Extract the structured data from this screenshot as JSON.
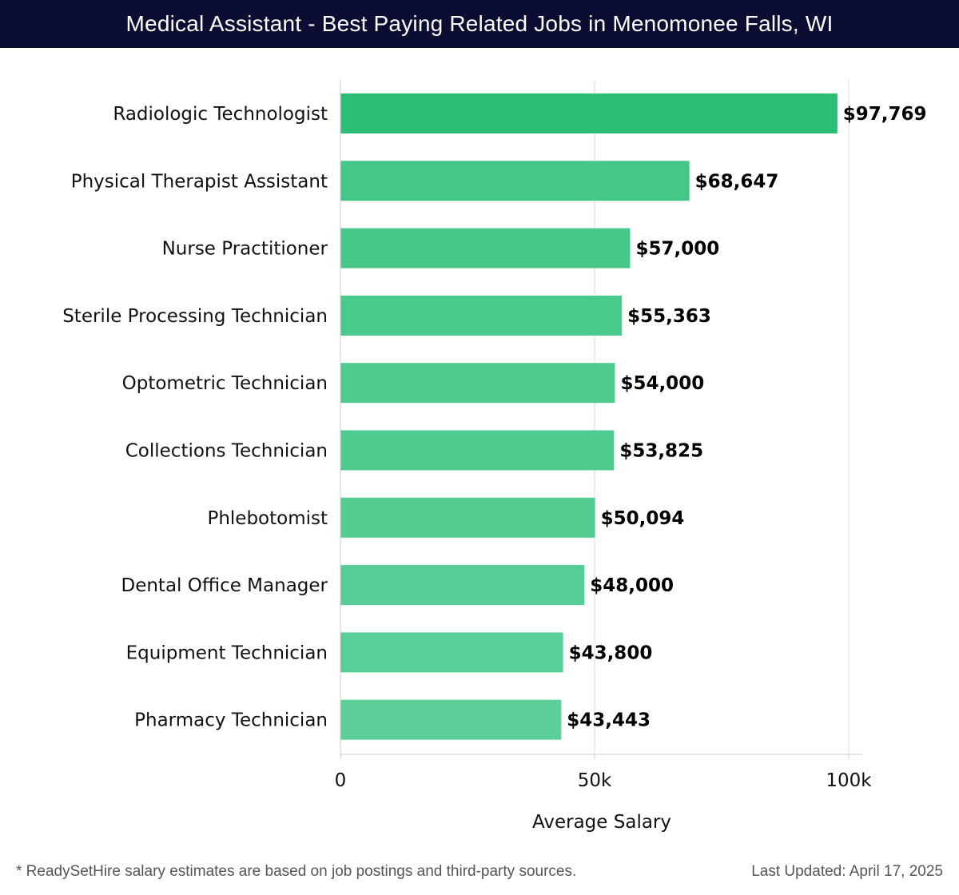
{
  "header": {
    "title": "Medical Assistant - Best Paying Related Jobs in Menomonee Falls, WI"
  },
  "chart_data": {
    "type": "bar",
    "orientation": "horizontal",
    "title": "Medical Assistant - Best Paying Related Jobs in Menomonee Falls, WI",
    "xlabel": "Average Salary",
    "ylabel": "",
    "xlim": [
      0,
      100000
    ],
    "xticks": [
      0,
      50000,
      100000
    ],
    "xtick_labels": [
      "0",
      "50k",
      "100k"
    ],
    "grid": "vertical",
    "categories": [
      "Radiologic Technologist",
      "Physical Therapist Assistant",
      "Nurse Practitioner",
      "Sterile Processing Technician",
      "Optometric Technician",
      "Collections Technician",
      "Phlebotomist",
      "Dental Office Manager",
      "Equipment Technician",
      "Pharmacy Technician"
    ],
    "values": [
      97769,
      68647,
      57000,
      55363,
      54000,
      53825,
      50094,
      48000,
      43800,
      43443
    ],
    "value_labels": [
      "$97,769",
      "$68,647",
      "$57,000",
      "$55,363",
      "$54,000",
      "$53,825",
      "$50,094",
      "$48,000",
      "$43,800",
      "$43,443"
    ],
    "colors": {
      "top": "#2bbf76",
      "bar": "#4fcb8e",
      "bar_light": "#5ccf98"
    }
  },
  "footer": {
    "note": "* ReadySetHire salary estimates are based on job postings and third-party sources.",
    "updated": "Last Updated: April 17, 2025"
  }
}
